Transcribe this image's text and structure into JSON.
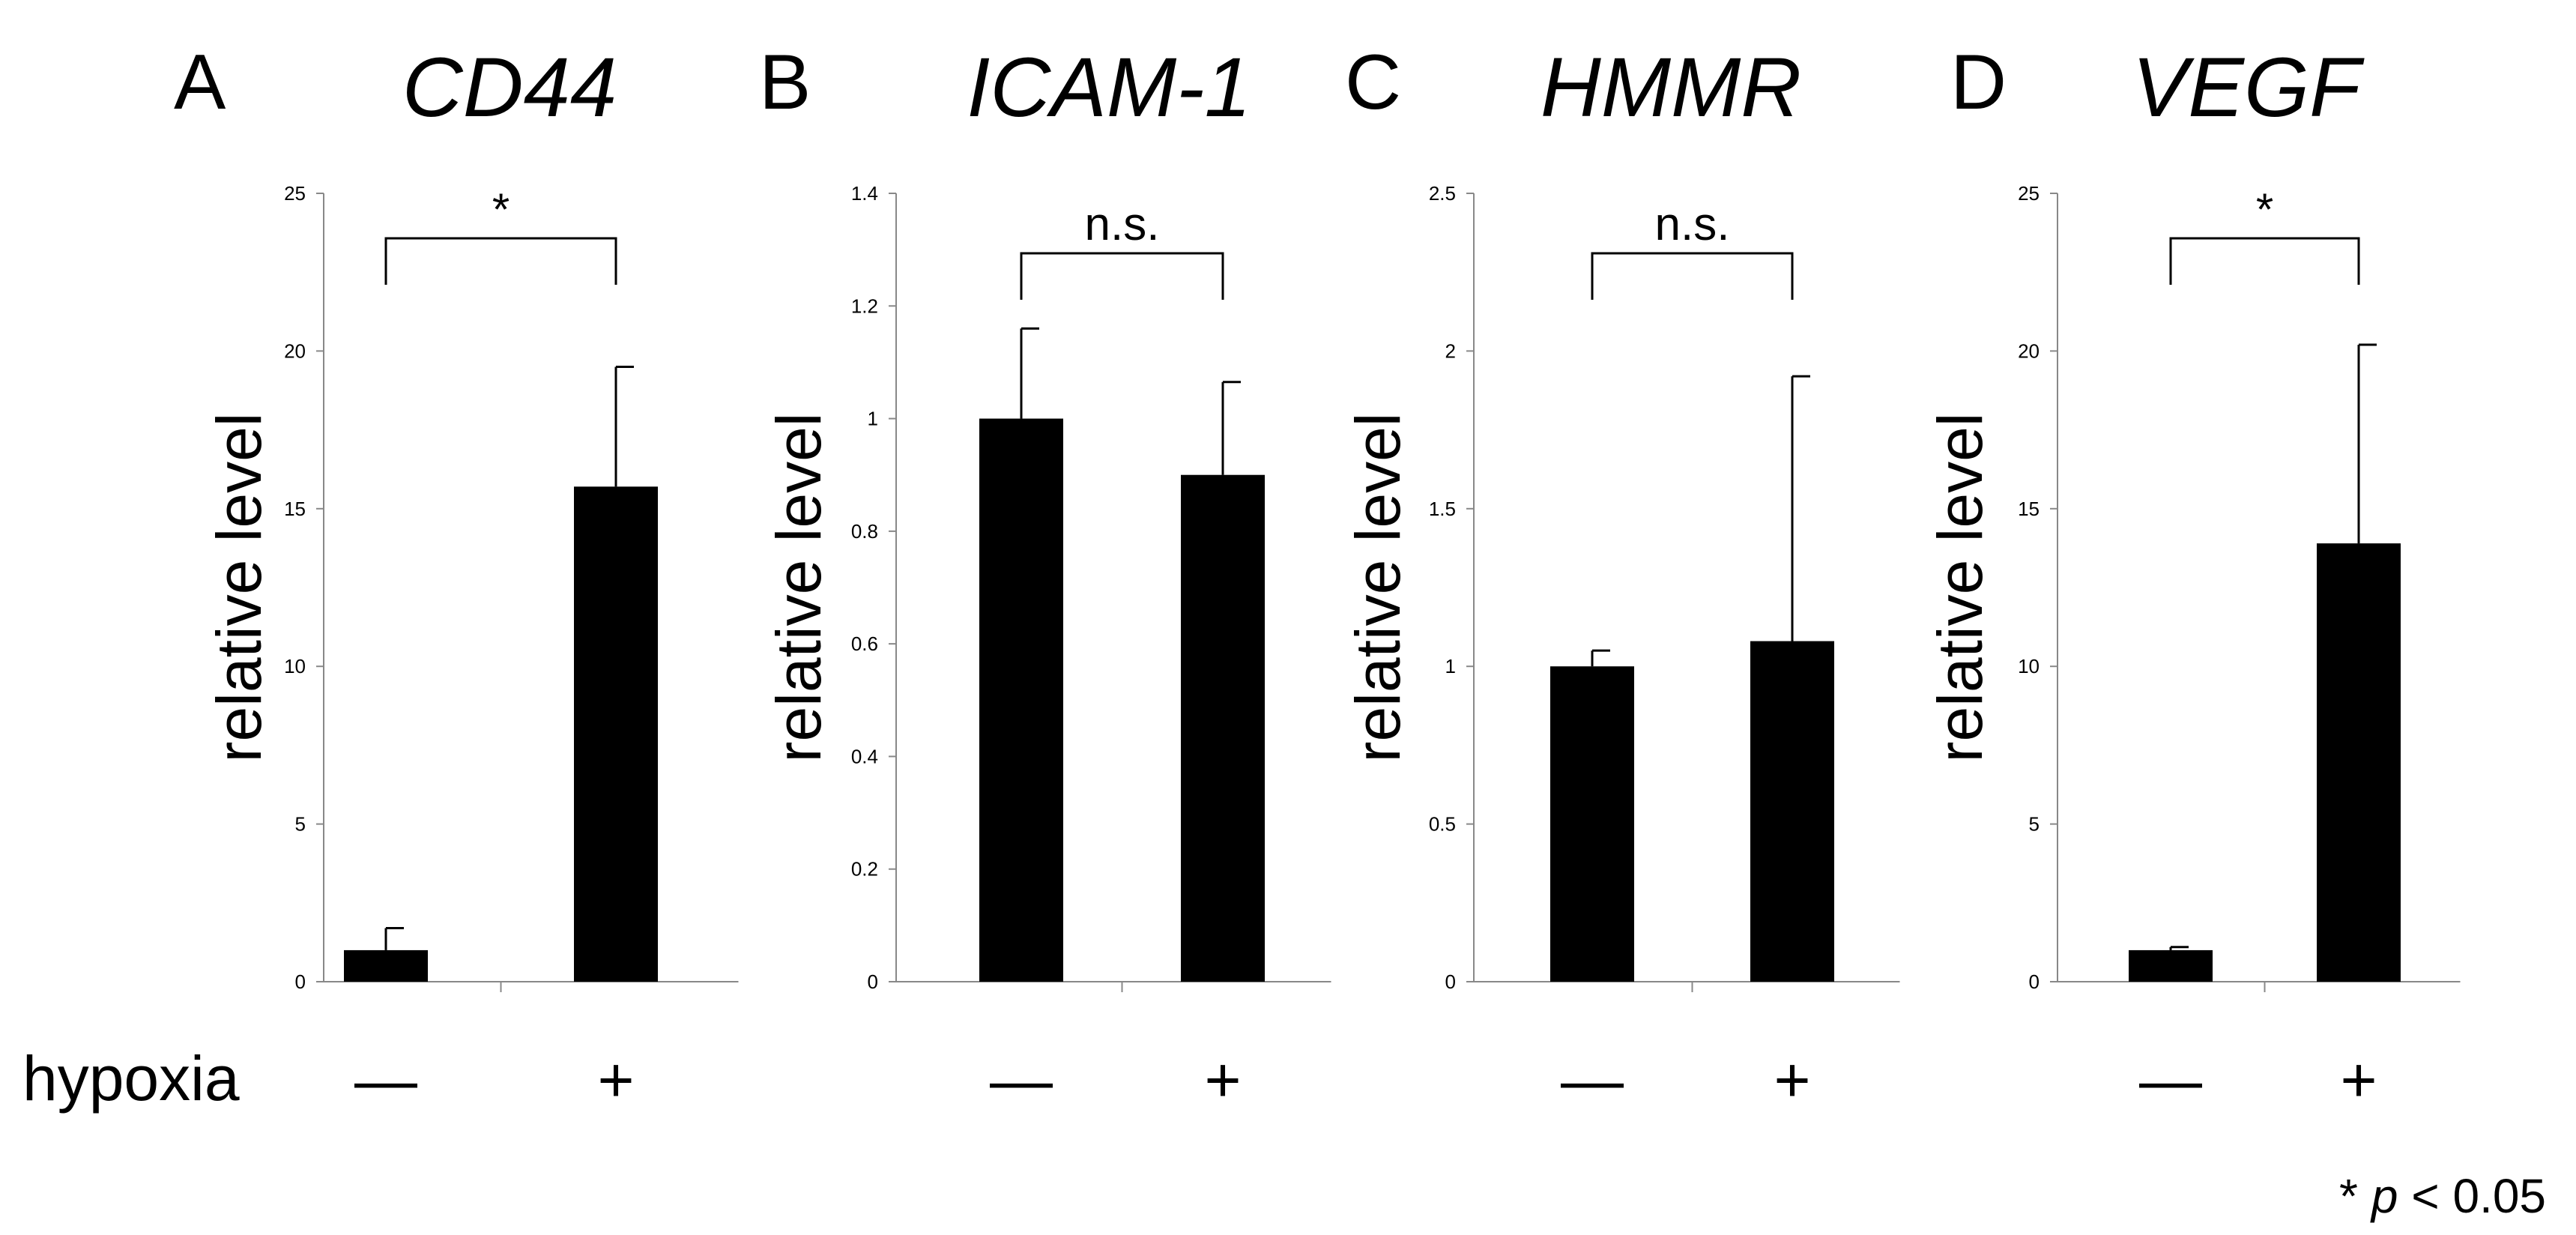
{
  "row_label": "hypoxia",
  "footnote": {
    "star": "*",
    "p": "p",
    "rest": " < 0.05"
  },
  "chart_data": [
    {
      "type": "bar",
      "panel": "A",
      "title": "CD44",
      "ylabel": "relative level",
      "categories": [
        "—",
        "+"
      ],
      "values": [
        1.0,
        15.7
      ],
      "errors": [
        0.7,
        3.8
      ],
      "ylim": [
        0,
        25
      ],
      "yticks": [
        0,
        5,
        10,
        15,
        20,
        25
      ],
      "significance": "*",
      "grid": false
    },
    {
      "type": "bar",
      "panel": "B",
      "title": "ICAM-1",
      "ylabel": "relative level",
      "categories": [
        "—",
        "+"
      ],
      "values": [
        1.0,
        0.9
      ],
      "errors": [
        0.16,
        0.165
      ],
      "ylim": [
        0,
        1.4
      ],
      "yticks": [
        0,
        0.2,
        0.4,
        0.6,
        0.8,
        1,
        1.2,
        1.4
      ],
      "significance": "n.s.",
      "grid": false
    },
    {
      "type": "bar",
      "panel": "C",
      "title": "HMMR",
      "ylabel": "relative level",
      "categories": [
        "—",
        "+"
      ],
      "values": [
        1.0,
        1.08
      ],
      "errors": [
        0.05,
        0.84
      ],
      "ylim": [
        0,
        2.5
      ],
      "yticks": [
        0,
        0.5,
        1,
        1.5,
        2,
        2.5
      ],
      "significance": "n.s.",
      "grid": false
    },
    {
      "type": "bar",
      "panel": "D",
      "title": "VEGF",
      "ylabel": "relative level",
      "categories": [
        "—",
        "+"
      ],
      "values": [
        1.0,
        13.9
      ],
      "errors": [
        0.1,
        6.3
      ],
      "ylim": [
        0,
        25
      ],
      "yticks": [
        0,
        5,
        10,
        15,
        20,
        25
      ],
      "significance": "*",
      "grid": false
    }
  ]
}
